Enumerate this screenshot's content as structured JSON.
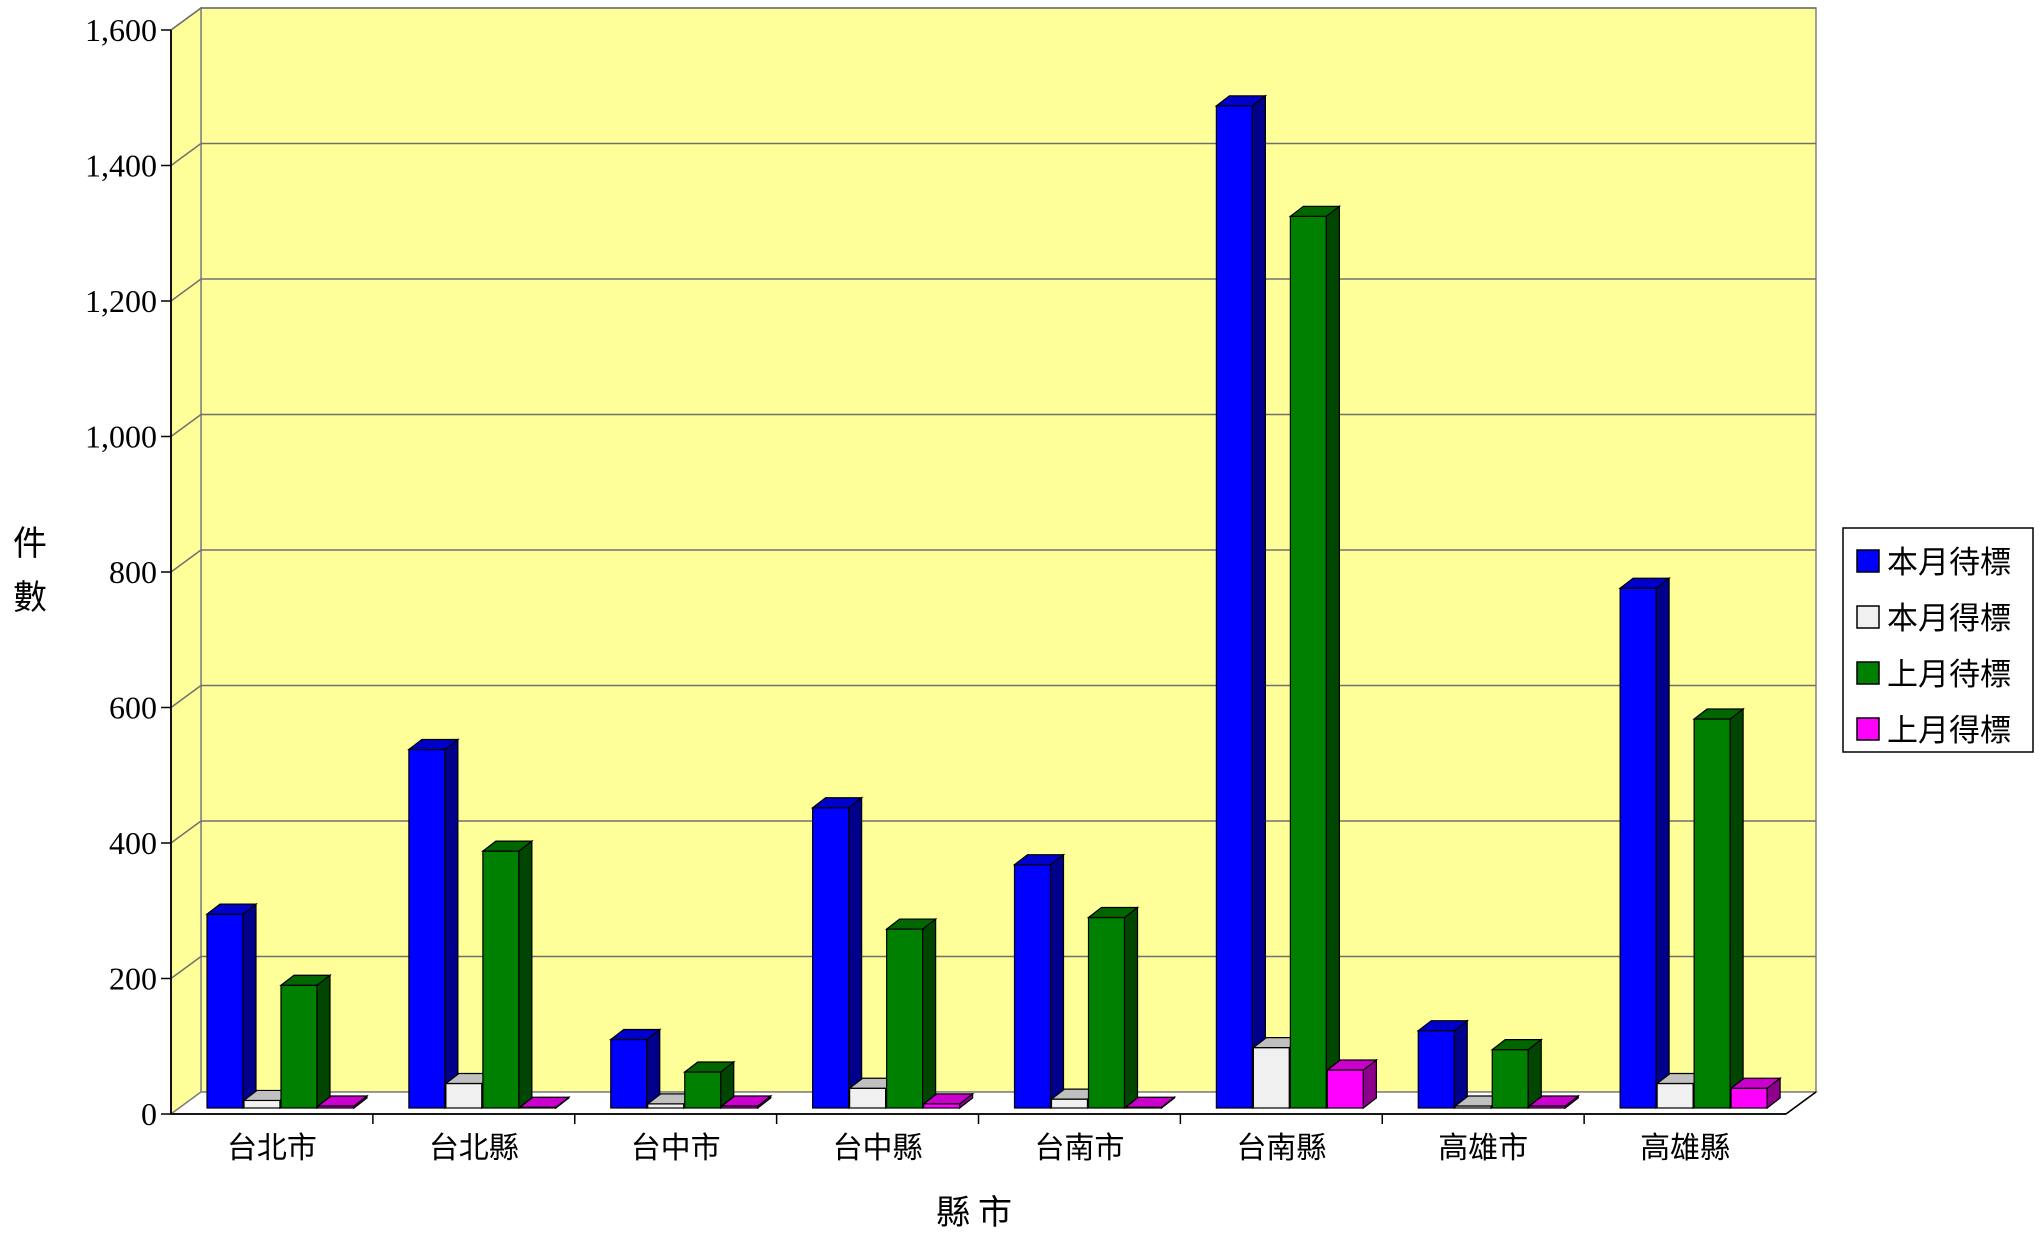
{
  "chart_data": {
    "type": "bar",
    "style": "3d-clustered-column",
    "title": "",
    "xlabel": "縣市",
    "ylabel": "件數",
    "ylim": [
      0,
      1600
    ],
    "yticks": [
      "0",
      "200",
      "400",
      "600",
      "800",
      "1,000",
      "1,200",
      "1,400",
      "1,600"
    ],
    "grid": true,
    "legend_position": "right",
    "plot_background": "#FFFF99",
    "categories": [
      "台北市",
      "台北縣",
      "台中市",
      "台中縣",
      "台南市",
      "台南縣",
      "高雄市",
      "高雄縣"
    ],
    "series": [
      {
        "name": "本月待標",
        "color": "#0000FF",
        "values": [
          295,
          538,
          110,
          452,
          368,
          1488,
          123,
          776
        ]
      },
      {
        "name": "本月得標",
        "color": "#F0F0F0",
        "values": [
          20,
          45,
          15,
          38,
          22,
          98,
          5,
          45
        ]
      },
      {
        "name": "上月待標",
        "color": "#008000",
        "values": [
          190,
          388,
          62,
          273,
          290,
          1325,
          95,
          583
        ]
      },
      {
        "name": "上月得標",
        "color": "#FF00FF",
        "values": [
          3,
          10,
          8,
          15,
          10,
          65,
          5,
          38
        ]
      }
    ]
  }
}
